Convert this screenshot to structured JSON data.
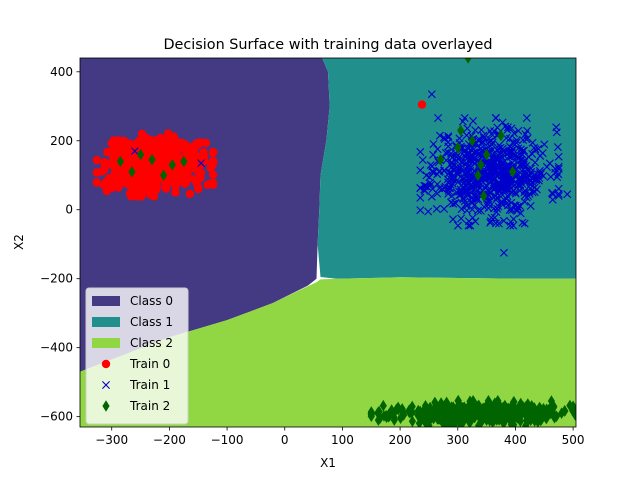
{
  "chart_data": {
    "type": "scatter",
    "title": "Decision Surface with training data overlayed",
    "xlabel": "X1",
    "ylabel": "X2",
    "xlim": [
      -355,
      505
    ],
    "ylim": [
      -630,
      440
    ],
    "xticks": [
      -300,
      -200,
      -100,
      0,
      100,
      200,
      300,
      400,
      500
    ],
    "yticks": [
      -600,
      -400,
      -200,
      0,
      200,
      400
    ],
    "grid": false,
    "legend_position": "lower-left",
    "colors": {
      "class0": "#443983",
      "class1": "#21908d",
      "class2": "#90d743",
      "train0": "#ff0000",
      "train1": "#0000cc",
      "train2": "#006400"
    },
    "regions": [
      {
        "name": "Class 0",
        "color": "#443983",
        "polygon": [
          [
            -355,
            440
          ],
          [
            65,
            440
          ],
          [
            75,
            400
          ],
          [
            78,
            300
          ],
          [
            72,
            200
          ],
          [
            62,
            100
          ],
          [
            60,
            0
          ],
          [
            57,
            -100
          ],
          [
            55,
            -200
          ],
          [
            40,
            -220
          ],
          [
            -20,
            -270
          ],
          [
            -100,
            -320
          ],
          [
            -200,
            -370
          ],
          [
            -355,
            -470
          ]
        ]
      },
      {
        "name": "Class 1",
        "color": "#21908d",
        "polygon": [
          [
            65,
            440
          ],
          [
            505,
            440
          ],
          [
            505,
            -200
          ],
          [
            400,
            -200
          ],
          [
            200,
            -196
          ],
          [
            90,
            -200
          ],
          [
            62,
            -195
          ],
          [
            57,
            -100
          ],
          [
            60,
            0
          ],
          [
            62,
            100
          ],
          [
            72,
            200
          ],
          [
            78,
            300
          ],
          [
            75,
            400
          ]
        ]
      },
      {
        "name": "Class 2",
        "color": "#90d743",
        "polygon": [
          [
            -355,
            -630
          ],
          [
            505,
            -630
          ],
          [
            505,
            -200
          ],
          [
            400,
            -200
          ],
          [
            200,
            -196
          ],
          [
            90,
            -200
          ],
          [
            62,
            -202
          ],
          [
            55,
            -210
          ],
          [
            40,
            -222
          ],
          [
            -20,
            -270
          ],
          [
            -100,
            -320
          ],
          [
            -200,
            -370
          ],
          [
            -355,
            -470
          ]
        ]
      }
    ],
    "clusters": [
      {
        "name": "Train 1",
        "marker": "x",
        "cx": 355,
        "cy": 110,
        "sx": 50,
        "sy": 65,
        "n": 650,
        "seed": 11
      },
      {
        "name": "Train 0",
        "marker": "o",
        "cx": -225,
        "cy": 130,
        "sx": 42,
        "sy": 38,
        "n": 520,
        "seed": 7
      },
      {
        "name": "Train 2",
        "marker": "d",
        "cx": 330,
        "cy": -590,
        "sx": 75,
        "sy": 15,
        "n": 450,
        "seed": 23
      }
    ],
    "series": [
      {
        "name": "Train 0",
        "marker": "o",
        "points": [
          [
            238,
            305
          ],
          [
            -300,
            193
          ],
          [
            -150,
            60
          ]
        ]
      },
      {
        "name": "Train 1",
        "marker": "x",
        "points": [
          [
            380,
            -125
          ],
          [
            490,
            45
          ],
          [
            255,
            335
          ],
          [
            -145,
            135
          ],
          [
            -260,
            170
          ]
        ]
      },
      {
        "name": "Train 2",
        "marker": "d",
        "points": [
          [
            318,
            440
          ],
          [
            -285,
            140
          ],
          [
            -230,
            145
          ],
          [
            -250,
            160
          ],
          [
            -195,
            130
          ],
          [
            -265,
            110
          ],
          [
            -175,
            140
          ],
          [
            -210,
            100
          ],
          [
            325,
            200
          ],
          [
            350,
            160
          ],
          [
            300,
            180
          ],
          [
            345,
            40
          ],
          [
            270,
            145
          ],
          [
            375,
            215
          ],
          [
            395,
            110
          ],
          [
            335,
            100
          ],
          [
            305,
            230
          ],
          [
            340,
            130
          ],
          [
            180,
            -600
          ],
          [
            190,
            -610
          ],
          [
            500,
            -570
          ],
          [
            480,
            -590
          ]
        ]
      }
    ],
    "legend": [
      {
        "label": "Class 0",
        "kind": "patch",
        "color": "#443983"
      },
      {
        "label": "Class 1",
        "kind": "patch",
        "color": "#21908d"
      },
      {
        "label": "Class 2",
        "kind": "patch",
        "color": "#90d743"
      },
      {
        "label": "Train 0",
        "kind": "o",
        "color": "#ff0000"
      },
      {
        "label": "Train 1",
        "kind": "x",
        "color": "#0000cc"
      },
      {
        "label": "Train 2",
        "kind": "d",
        "color": "#006400"
      }
    ]
  }
}
